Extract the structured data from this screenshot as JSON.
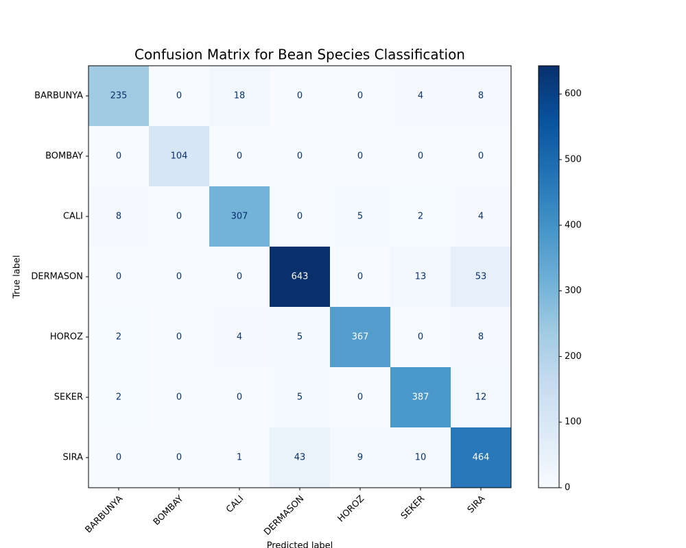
{
  "chart_data": {
    "type": "heatmap",
    "title": "Confusion Matrix for Bean Species Classification",
    "xlabel": "Predicted label",
    "ylabel": "True label",
    "x_categories": [
      "BARBUNYA",
      "BOMBAY",
      "CALI",
      "DERMASON",
      "HOROZ",
      "SEKER",
      "SIRA"
    ],
    "y_categories": [
      "BARBUNYA",
      "BOMBAY",
      "CALI",
      "DERMASON",
      "HOROZ",
      "SEKER",
      "SIRA"
    ],
    "values": [
      [
        235,
        0,
        18,
        0,
        0,
        4,
        8
      ],
      [
        0,
        104,
        0,
        0,
        0,
        0,
        0
      ],
      [
        8,
        0,
        307,
        0,
        5,
        2,
        4
      ],
      [
        0,
        0,
        0,
        643,
        0,
        13,
        53
      ],
      [
        2,
        0,
        4,
        5,
        367,
        0,
        8
      ],
      [
        2,
        0,
        0,
        5,
        0,
        387,
        12
      ],
      [
        0,
        0,
        1,
        43,
        9,
        10,
        464
      ]
    ],
    "clim": [
      0,
      643
    ],
    "cticks": [
      0,
      100,
      200,
      300,
      400,
      500,
      600
    ],
    "colors": [
      "#f7fbff",
      "#deebf7",
      "#c6dbef",
      "#9ecae1",
      "#6baed6",
      "#4292c6",
      "#2171b5",
      "#08519c",
      "#08306b"
    ]
  }
}
